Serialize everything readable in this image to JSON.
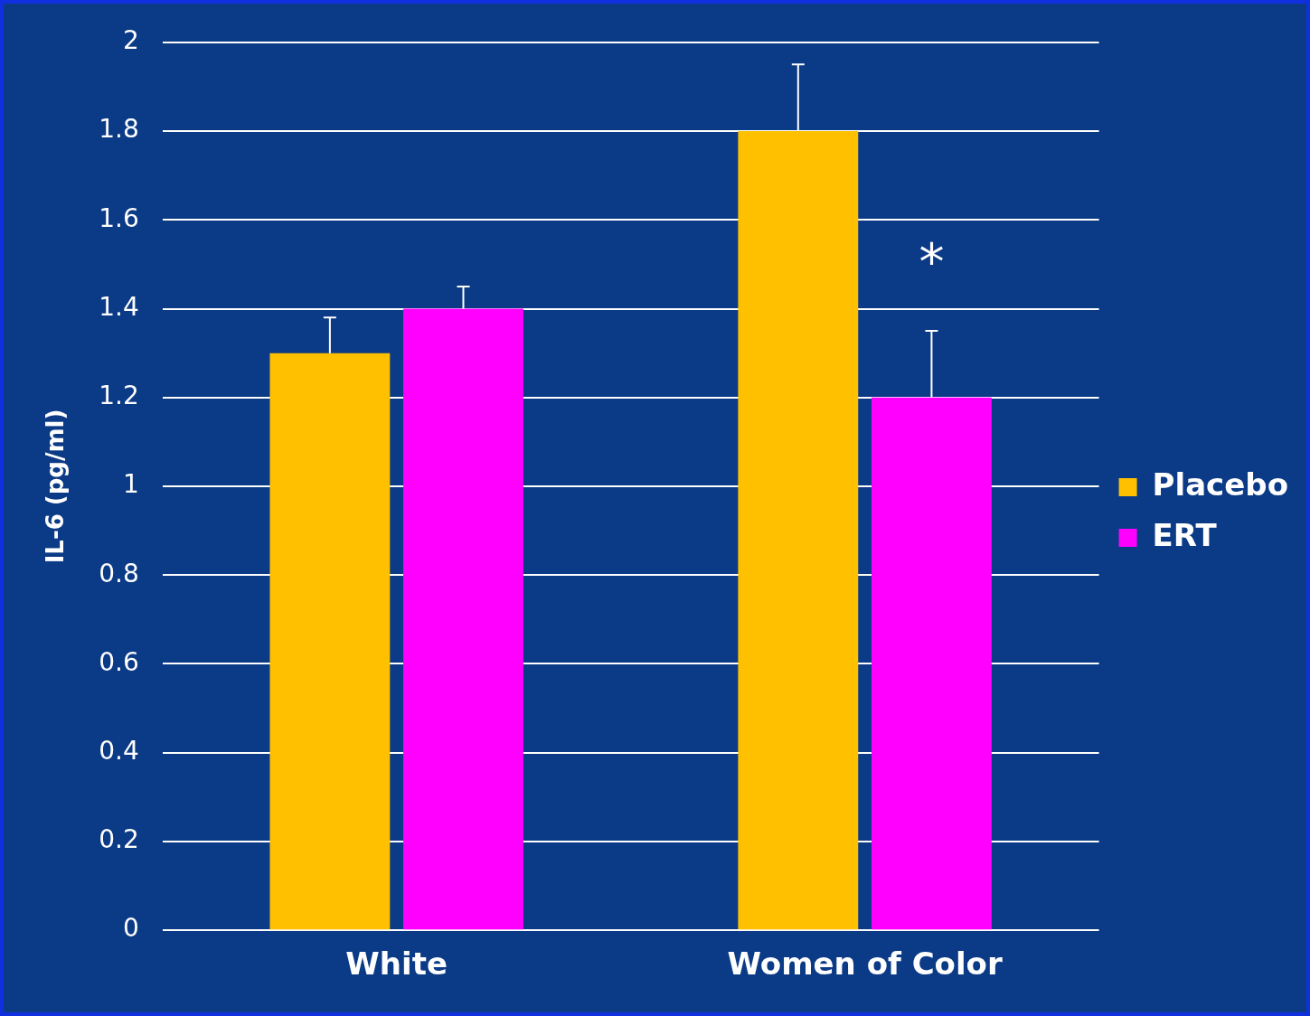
{
  "chart_data": {
    "type": "bar",
    "ylabel": "IL-6 (pg/ml)",
    "categories": [
      "White",
      "Women of Color"
    ],
    "series": [
      {
        "name": "Placebo",
        "color": "#ffc000",
        "values": [
          1.3,
          1.8
        ],
        "errors": [
          [
            1.3,
            1.38
          ],
          [
            1.8,
            1.95
          ]
        ]
      },
      {
        "name": "ERT",
        "color": "#ff00ff",
        "values": [
          1.4,
          1.2
        ],
        "errors": [
          [
            1.4,
            1.45
          ],
          [
            1.2,
            1.35
          ]
        ]
      }
    ],
    "ylim": [
      0,
      2
    ],
    "yticks": [
      0,
      0.2,
      0.4,
      0.6,
      0.8,
      1,
      1.2,
      1.4,
      1.6,
      1.8,
      2
    ],
    "grid": "y",
    "legend": "right",
    "annotations": [
      "*"
    ]
  }
}
